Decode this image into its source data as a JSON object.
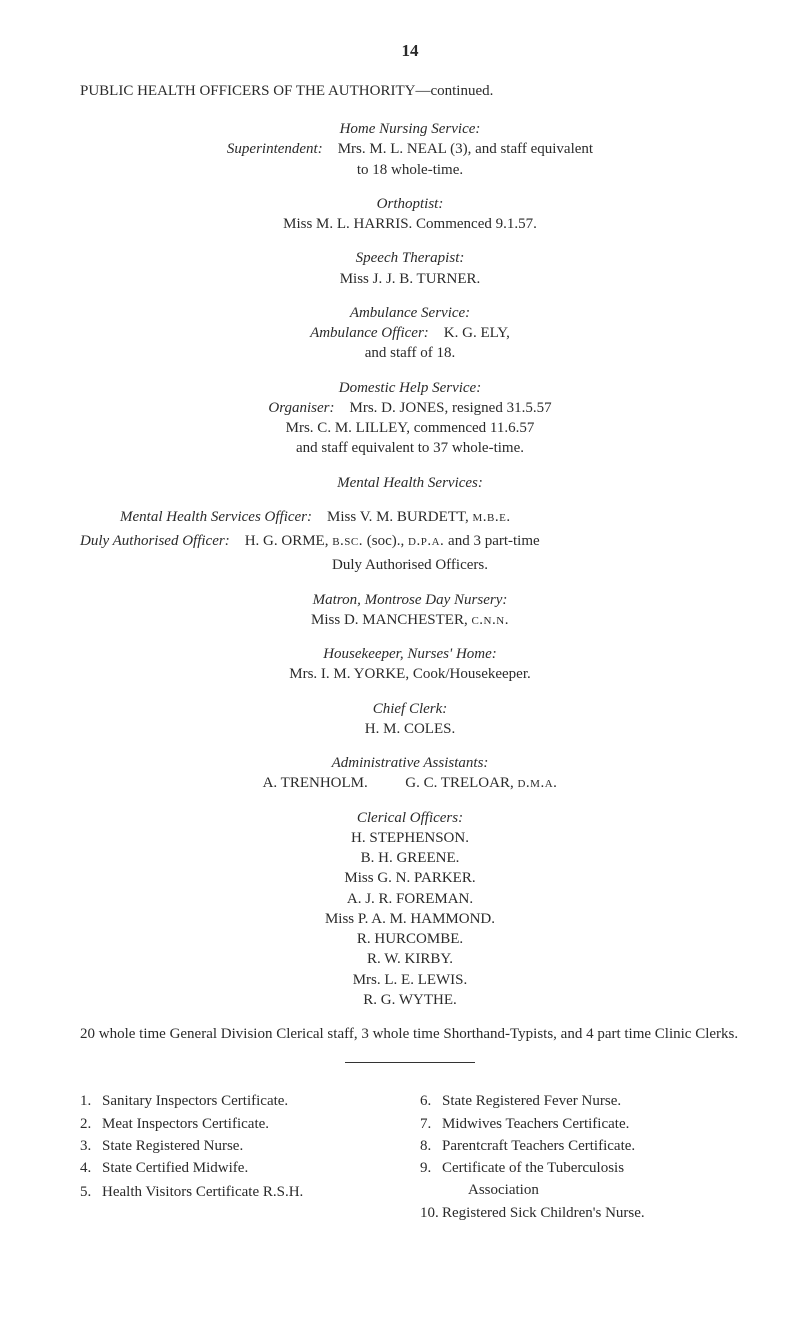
{
  "page_number": "14",
  "main_heading": "PUBLIC HEALTH OFFICERS OF THE AUTHORITY—continued.",
  "home_nursing": {
    "title": "Home Nursing Service:",
    "label": "Superintendent:",
    "text": "Mrs. M. L. NEAL (3), and staff equivalent",
    "line2": "to 18 whole-time."
  },
  "orthoptist": {
    "title": "Orthoptist:",
    "text": "Miss M. L. HARRIS. Commenced 9.1.57."
  },
  "speech": {
    "title": "Speech Therapist:",
    "text": "Miss J. J. B. TURNER."
  },
  "ambulance": {
    "title": "Ambulance Service:",
    "label": "Ambulance Officer:",
    "text": "K. G. ELY,",
    "line2": "and staff of 18."
  },
  "domestic": {
    "title": "Domestic Help Service:",
    "label": "Organiser:",
    "line1": "Mrs. D. JONES, resigned 31.5.57",
    "line2": "Mrs. C. M. LILLEY, commenced 11.6.57",
    "line3": "and staff equivalent to 37 whole-time."
  },
  "mental": {
    "title": "Mental Health Services:",
    "line1_label": "Mental Health Services Officer:",
    "line1_text": "Miss V. M. BURDETT, ",
    "line1_sc": "m.b.e.",
    "line2_label": "Duly Authorised Officer:",
    "line2_text": "H. G. ORME, ",
    "line2_sc1": "b.sc.",
    "line2_mid": " (soc)., ",
    "line2_sc2": "d.p.a.",
    "line2_end": " and 3 part-time",
    "line3": "Duly Authorised Officers."
  },
  "matron": {
    "title": "Matron, Montrose Day Nursery:",
    "text": "Miss D. MANCHESTER, ",
    "sc": "c.n.n."
  },
  "housekeeper": {
    "title": "Housekeeper, Nurses' Home:",
    "text": "Mrs. I. M. YORKE, Cook/Housekeeper."
  },
  "chief_clerk": {
    "title": "Chief Clerk:",
    "text": "H. M. COLES."
  },
  "admin": {
    "title": "Administrative Assistants:",
    "left": "A. TRENHOLM.",
    "right": "G. C. TRELOAR, ",
    "sc": "d.m.a."
  },
  "clerical": {
    "title": "Clerical Officers:",
    "items": [
      "H. STEPHENSON.",
      "B. H. GREENE.",
      "Miss G. N. PARKER.",
      "A. J. R. FOREMAN.",
      "Miss P. A. M. HAMMOND.",
      "R. HURCOMBE.",
      "R. W. KIRBY.",
      "Mrs. L. E. LEWIS.",
      "R. G. WYTHE."
    ]
  },
  "summary": "20 whole time General Division Clerical staff, 3 whole time Shorthand-Typists, and 4 part time Clinic Clerks.",
  "footnotes_left": [
    {
      "n": "1.",
      "t": "Sanitary Inspectors Certificate."
    },
    {
      "n": "2.",
      "t": "Meat Inspectors Certificate."
    },
    {
      "n": "3.",
      "t": "State Registered Nurse."
    },
    {
      "n": "4.",
      "t": "State Certified Midwife."
    },
    {
      "n": "",
      "t": ""
    },
    {
      "n": "5.",
      "t": "Health Visitors Certificate R.S.H."
    }
  ],
  "footnotes_right": [
    {
      "n": "6.",
      "t": "State Registered Fever Nurse."
    },
    {
      "n": "7.",
      "t": "Midwives Teachers Certificate."
    },
    {
      "n": "8.",
      "t": "Parentcraft Teachers Certificate."
    },
    {
      "n": "9.",
      "t": "Certificate of the Tuberculosis"
    },
    {
      "n": "",
      "t": "Association",
      "indent": true
    },
    {
      "n": "10.",
      "t": "Registered Sick Children's Nurse."
    }
  ]
}
